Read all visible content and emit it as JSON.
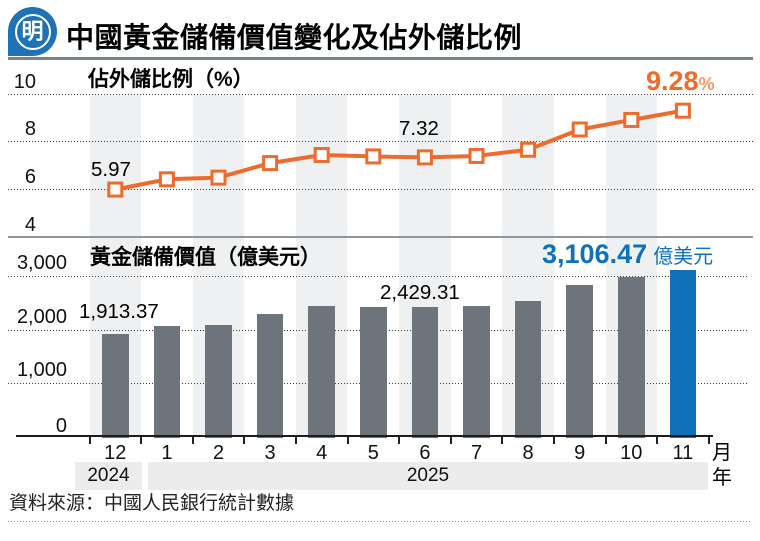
{
  "header": {
    "logo_text": "明",
    "title": "中國黃金儲備價值變化及佔外儲比例"
  },
  "source": "資料來源：中國人民銀行統計數據",
  "colors": {
    "line_orange": "#ed6c2d",
    "pct_light_orange": "#f19b66",
    "bar_gray": "#6d747b",
    "highlight_blue": "#0f72b9",
    "logo_blue": "#1e73b6",
    "stripe_gray": "#eff0f1",
    "year_band_gray": "#ececec"
  },
  "axis": {
    "month_suffix": "月",
    "year_suffix": "年",
    "years": [
      {
        "label": "2024"
      },
      {
        "label": "2025"
      }
    ]
  },
  "chart_data": [
    {
      "type": "line",
      "title": "佔外儲比例（%）",
      "categories": [
        "12",
        "1",
        "2",
        "3",
        "4",
        "5",
        "6",
        "7",
        "8",
        "9",
        "10",
        "11"
      ],
      "values": [
        5.97,
        6.4,
        6.47,
        7.08,
        7.42,
        7.36,
        7.32,
        7.38,
        7.64,
        8.49,
        8.89,
        9.28
      ],
      "ylim": [
        4,
        10
      ],
      "yticks": [
        10,
        8,
        6,
        4
      ],
      "ytick_labels": [
        "10",
        "8",
        "6",
        "4"
      ],
      "grid": "dotted horizontal",
      "annotations": [
        {
          "index": 0,
          "text": "5.97"
        },
        {
          "index": 6,
          "text": "7.32"
        }
      ],
      "highlight_label": {
        "value": "9.28",
        "suffix": "%"
      }
    },
    {
      "type": "bar",
      "title": "黃金儲備價值（億美元）",
      "categories": [
        "12",
        "1",
        "2",
        "3",
        "4",
        "5",
        "6",
        "7",
        "8",
        "9",
        "10",
        "11"
      ],
      "values": [
        1913.37,
        2065,
        2090,
        2296,
        2436,
        2420,
        2429.31,
        2440,
        2538,
        2833,
        2973,
        3106.47
      ],
      "ylim": [
        0,
        3200
      ],
      "yticks": [
        3000,
        2000,
        1000,
        0
      ],
      "ytick_labels": [
        "3,000",
        "2,000",
        "1,000",
        "0"
      ],
      "grid": "dotted horizontal",
      "highlight_index": 11,
      "annotations": [
        {
          "index": 0,
          "text": "1,913.37"
        },
        {
          "index": 6,
          "text": "2,429.31"
        }
      ],
      "highlight_label": {
        "value": "3,106.47",
        "suffix": "億美元"
      }
    }
  ]
}
